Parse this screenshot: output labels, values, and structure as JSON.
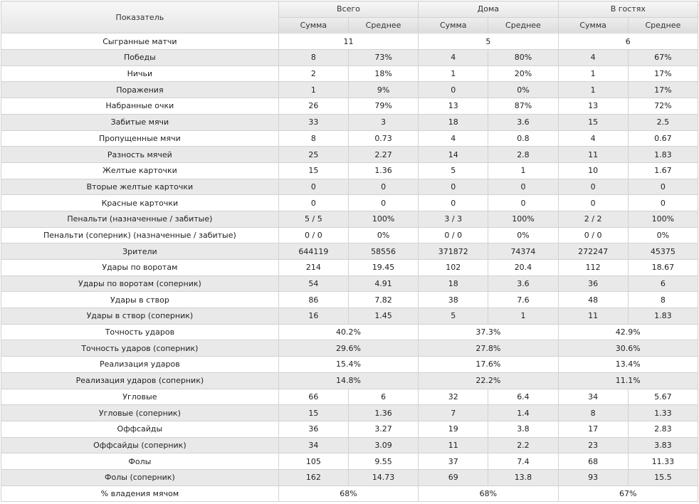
{
  "header": {
    "indicator": "Показатель",
    "groups": [
      "Всего",
      "Дома",
      "В гостях"
    ],
    "sub": [
      "Сумма",
      "Среднее"
    ]
  },
  "rows": [
    {
      "label": "Сыгранные матчи",
      "merged": [
        "11",
        "5",
        "6"
      ]
    },
    {
      "label": "Победы",
      "values": [
        "8",
        "73%",
        "4",
        "80%",
        "4",
        "67%"
      ]
    },
    {
      "label": "Ничьи",
      "values": [
        "2",
        "18%",
        "1",
        "20%",
        "1",
        "17%"
      ]
    },
    {
      "label": "Поражения",
      "values": [
        "1",
        "9%",
        "0",
        "0%",
        "1",
        "17%"
      ]
    },
    {
      "label": "Набранные очки",
      "values": [
        "26",
        "79%",
        "13",
        "87%",
        "13",
        "72%"
      ]
    },
    {
      "label": "Забитые мячи",
      "values": [
        "33",
        "3",
        "18",
        "3.6",
        "15",
        "2.5"
      ]
    },
    {
      "label": "Пропущенные мячи",
      "values": [
        "8",
        "0.73",
        "4",
        "0.8",
        "4",
        "0.67"
      ]
    },
    {
      "label": "Разность мячей",
      "values": [
        "25",
        "2.27",
        "14",
        "2.8",
        "11",
        "1.83"
      ]
    },
    {
      "label": "Желтые карточки",
      "values": [
        "15",
        "1.36",
        "5",
        "1",
        "10",
        "1.67"
      ]
    },
    {
      "label": "Вторые желтые карточки",
      "values": [
        "0",
        "0",
        "0",
        "0",
        "0",
        "0"
      ]
    },
    {
      "label": "Красные карточки",
      "values": [
        "0",
        "0",
        "0",
        "0",
        "0",
        "0"
      ]
    },
    {
      "label": "Пенальти (назначенные / забитые)",
      "values": [
        "5 / 5",
        "100%",
        "3 / 3",
        "100%",
        "2 / 2",
        "100%"
      ]
    },
    {
      "label": "Пенальти (соперник) (назначенные / забитые)",
      "values": [
        "0 / 0",
        "0%",
        "0 / 0",
        "0%",
        "0 / 0",
        "0%"
      ]
    },
    {
      "label": "Зрители",
      "values": [
        "644119",
        "58556",
        "371872",
        "74374",
        "272247",
        "45375"
      ]
    },
    {
      "label": "Удары по воротам",
      "values": [
        "214",
        "19.45",
        "102",
        "20.4",
        "112",
        "18.67"
      ]
    },
    {
      "label": "Удары по воротам (соперник)",
      "values": [
        "54",
        "4.91",
        "18",
        "3.6",
        "36",
        "6"
      ]
    },
    {
      "label": "Удары в створ",
      "values": [
        "86",
        "7.82",
        "38",
        "7.6",
        "48",
        "8"
      ]
    },
    {
      "label": "Удары в створ (соперник)",
      "values": [
        "16",
        "1.45",
        "5",
        "1",
        "11",
        "1.83"
      ]
    },
    {
      "label": "Точность ударов",
      "merged": [
        "40.2%",
        "37.3%",
        "42.9%"
      ]
    },
    {
      "label": "Точность ударов (соперник)",
      "merged": [
        "29.6%",
        "27.8%",
        "30.6%"
      ]
    },
    {
      "label": "Реализация ударов",
      "merged": [
        "15.4%",
        "17.6%",
        "13.4%"
      ]
    },
    {
      "label": "Реализация ударов (соперник)",
      "merged": [
        "14.8%",
        "22.2%",
        "11.1%"
      ]
    },
    {
      "label": "Угловые",
      "values": [
        "66",
        "6",
        "32",
        "6.4",
        "34",
        "5.67"
      ]
    },
    {
      "label": "Угловые (соперник)",
      "values": [
        "15",
        "1.36",
        "7",
        "1.4",
        "8",
        "1.33"
      ]
    },
    {
      "label": "Оффсайды",
      "values": [
        "36",
        "3.27",
        "19",
        "3.8",
        "17",
        "2.83"
      ]
    },
    {
      "label": "Оффсайды (соперник)",
      "values": [
        "34",
        "3.09",
        "11",
        "2.2",
        "23",
        "3.83"
      ]
    },
    {
      "label": "Фолы",
      "values": [
        "105",
        "9.55",
        "37",
        "7.4",
        "68",
        "11.33"
      ]
    },
    {
      "label": "Фолы (соперник)",
      "values": [
        "162",
        "14.73",
        "69",
        "13.8",
        "93",
        "15.5"
      ]
    },
    {
      "label": "% владения мячом",
      "merged": [
        "68%",
        "68%",
        "67%"
      ]
    }
  ]
}
